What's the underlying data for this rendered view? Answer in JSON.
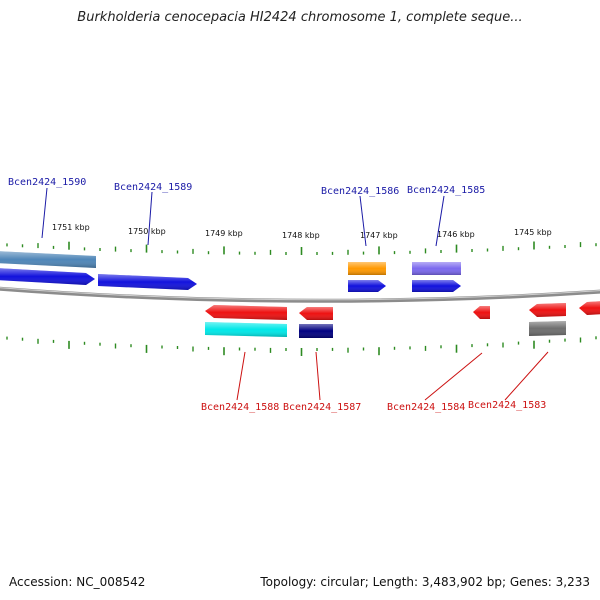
{
  "title": "Burkholderia cenocepacia HI2424 chromosome 1, complete seque...",
  "footer": {
    "accession": "Accession: NC_008542",
    "summary": "Topology: circular; Length: 3,483,902 bp; Genes: 3,233"
  },
  "colors": {
    "backbone": "#8c8c8c",
    "tick": "#2e8b22",
    "forward_label": "#1a1aa6",
    "reverse_label": "#cc1111"
  },
  "kbp_labels": [
    "1751 kbp",
    "1750 kbp",
    "1749 kbp",
    "1748 kbp",
    "1747 kbp",
    "1746 kbp",
    "1745 kbp"
  ],
  "gene_labels": {
    "forward": [
      "Bcen2424_1590",
      "Bcen2424_1589",
      "Bcen2424_1586",
      "Bcen2424_1585"
    ],
    "reverse": [
      "Bcen2424_1588",
      "Bcen2424_1587",
      "Bcen2424_1584",
      "Bcen2424_1583"
    ]
  },
  "features": [
    {
      "name": "steelblue-feature-1590",
      "color": "#4f86b8",
      "strand": "+"
    },
    {
      "name": "blue-gene-1590",
      "color": "#1212dd",
      "strand": "+"
    },
    {
      "name": "blue-gene-1589",
      "color": "#1212dd",
      "strand": "+"
    },
    {
      "name": "orange-feature-1586",
      "color": "#ff9900",
      "strand": "+"
    },
    {
      "name": "blue-gene-1586",
      "color": "#1212dd",
      "strand": "+"
    },
    {
      "name": "purple-feature-1585",
      "color": "#7b68ee",
      "strand": "+"
    },
    {
      "name": "blue-gene-1585",
      "color": "#1212dd",
      "strand": "+"
    },
    {
      "name": "red-gene-1588",
      "color": "#ee1111",
      "strand": "-"
    },
    {
      "name": "cyan-feature-1588",
      "color": "#00e8e8",
      "strand": "-"
    },
    {
      "name": "red-gene-1587",
      "color": "#ee1111",
      "strand": "-"
    },
    {
      "name": "navy-feature-1587",
      "color": "#000080",
      "strand": "-"
    },
    {
      "name": "red-gene-1584",
      "color": "#ee1111",
      "strand": "-"
    },
    {
      "name": "red-gene-1583",
      "color": "#ee1111",
      "strand": "-"
    },
    {
      "name": "gray-feature-1583",
      "color": "#6e6e6e",
      "strand": "-"
    },
    {
      "name": "red-gene-edge",
      "color": "#ee1111",
      "strand": "-"
    }
  ]
}
